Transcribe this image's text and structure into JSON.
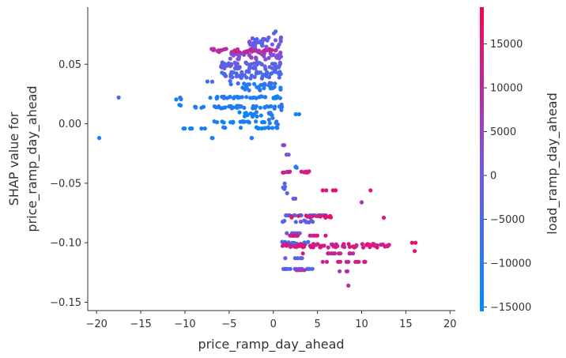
{
  "chart_data": {
    "type": "scatter",
    "xlabel": "price_ramp_day_ahead",
    "ylabel_lines": [
      "SHAP value for",
      "price_ramp_day_ahead"
    ],
    "xlim": [
      -21,
      20.6
    ],
    "ylim": [
      -0.157,
      0.098
    ],
    "xticks": [
      -20,
      -15,
      -10,
      -5,
      0,
      5,
      10,
      15,
      20
    ],
    "xtick_labels": [
      "−20",
      "−15",
      "−10",
      "−5",
      "0",
      "5",
      "10",
      "15",
      "20"
    ],
    "yticks": [
      0.05,
      0.0,
      -0.05,
      -0.1,
      -0.15
    ],
    "ytick_labels": [
      "0.05",
      "0.00",
      "−0.05",
      "−0.10",
      "−0.15"
    ],
    "grid": false,
    "colorbar": {
      "label": "load_ramp_day_ahead",
      "range": [
        -15500,
        19200
      ],
      "ticks": [
        15000,
        10000,
        5000,
        0,
        -5000,
        -10000,
        -15000
      ],
      "tick_labels": [
        "15000",
        "10000",
        "5000",
        "0",
        "−5000",
        "−10000",
        "−15000"
      ],
      "colormap": [
        "#008afb",
        "#7c52e0",
        "#ff0052"
      ]
    },
    "clusters": [
      {
        "x": [
          -19.7,
          -19.7
        ],
        "y": [
          -0.012,
          -0.012
        ],
        "color": -13000,
        "n": 1
      },
      {
        "x": [
          -17.5,
          -17.5
        ],
        "y": [
          0.022,
          0.022
        ],
        "color": -5000,
        "n": 1
      },
      {
        "x": [
          -11.5,
          -10.0
        ],
        "y": [
          0.014,
          0.022
        ],
        "color": -11000,
        "n": 5
      },
      {
        "x": [
          -10.5,
          -7.5
        ],
        "y": [
          -0.004,
          -0.004
        ],
        "color": -12000,
        "n": 6
      },
      {
        "x": [
          -9.0,
          1.0
        ],
        "y": [
          0.013,
          0.015
        ],
        "color": -11000,
        "n": 40
      },
      {
        "x": [
          -7.5,
          1.0
        ],
        "y": [
          0.021,
          0.023
        ],
        "color": -11000,
        "n": 35
      },
      {
        "x": [
          -7.0,
          0.5
        ],
        "y": [
          0.001,
          0.002
        ],
        "color": -12000,
        "n": 20
      },
      {
        "x": [
          -6.0,
          0.5
        ],
        "y": [
          -0.004,
          -0.003
        ],
        "color": -12000,
        "n": 15
      },
      {
        "x": [
          -7.0,
          -6.5
        ],
        "y": [
          -0.012,
          -0.012
        ],
        "color": -12000,
        "n": 2
      },
      {
        "x": [
          -2.5,
          -1.8
        ],
        "y": [
          -0.012,
          -0.012
        ],
        "color": -12000,
        "n": 2
      },
      {
        "x": [
          -4.0,
          0.0
        ],
        "y": [
          0.006,
          0.01
        ],
        "color": -12000,
        "n": 15
      },
      {
        "x": [
          -3.5,
          1.0
        ],
        "y": [
          0.028,
          0.034
        ],
        "color": -11000,
        "n": 25
      },
      {
        "x": [
          -7.5,
          0.5
        ],
        "y": [
          0.033,
          0.036
        ],
        "color": -5500,
        "n": 8
      },
      {
        "x": [
          -7.0,
          1.0
        ],
        "y": [
          0.038,
          0.044
        ],
        "color": -4500,
        "n": 45
      },
      {
        "x": [
          -6.0,
          1.0
        ],
        "y": [
          0.046,
          0.052
        ],
        "color": -2000,
        "n": 55
      },
      {
        "x": [
          -5.0,
          1.0
        ],
        "y": [
          0.054,
          0.06
        ],
        "color": 3000,
        "n": 40
      },
      {
        "x": [
          -7.0,
          1.0
        ],
        "y": [
          0.06,
          0.063
        ],
        "color": 10000,
        "n": 40
      },
      {
        "x": [
          -3.0,
          1.0
        ],
        "y": [
          0.064,
          0.073
        ],
        "color": 0,
        "n": 25
      },
      {
        "x": [
          0.0,
          0.5
        ],
        "y": [
          0.075,
          0.078
        ],
        "color": -3000,
        "n": 2
      },
      {
        "x": [
          -0.5,
          1.0
        ],
        "y": [
          -0.001,
          0.017
        ],
        "color": -8000,
        "n": 10
      },
      {
        "x": [
          2.0,
          3.0
        ],
        "y": [
          0.008,
          0.008
        ],
        "color": -12000,
        "n": 2
      },
      {
        "x": [
          -2.5,
          -0.5
        ],
        "y": [
          0.066,
          0.071
        ],
        "color": -4000,
        "n": 6
      },
      {
        "x": [
          0.8,
          1.5
        ],
        "y": [
          -0.018,
          -0.018
        ],
        "color": 6000,
        "n": 2
      },
      {
        "x": [
          0.9,
          1.8
        ],
        "y": [
          -0.026,
          -0.026
        ],
        "color": 0,
        "n": 2
      },
      {
        "x": [
          1.0,
          4.5
        ],
        "y": [
          -0.041,
          -0.04
        ],
        "color": 12000,
        "n": 14
      },
      {
        "x": [
          2.5,
          3.5
        ],
        "y": [
          -0.037,
          -0.036
        ],
        "color": -9000,
        "n": 3
      },
      {
        "x": [
          1.0,
          1.6
        ],
        "y": [
          -0.048,
          -0.06
        ],
        "color": -3000,
        "n": 5
      },
      {
        "x": [
          2.2,
          2.8
        ],
        "y": [
          -0.063,
          -0.063
        ],
        "color": 2000,
        "n": 2
      },
      {
        "x": [
          5.5,
          7.5
        ],
        "y": [
          -0.056,
          -0.056
        ],
        "color": 14000,
        "n": 5
      },
      {
        "x": [
          11.0,
          11.0
        ],
        "y": [
          -0.056,
          -0.056
        ],
        "color": 12000,
        "n": 1
      },
      {
        "x": [
          10.0,
          10.0
        ],
        "y": [
          -0.066,
          -0.066
        ],
        "color": 6000,
        "n": 1
      },
      {
        "x": [
          1.0,
          6.0
        ],
        "y": [
          -0.077,
          -0.077
        ],
        "color": -4000,
        "n": 20
      },
      {
        "x": [
          2.0,
          7.0
        ],
        "y": [
          -0.079,
          -0.077
        ],
        "color": 14000,
        "n": 20
      },
      {
        "x": [
          1.0,
          4.5
        ],
        "y": [
          -0.083,
          -0.081
        ],
        "color": -2000,
        "n": 10
      },
      {
        "x": [
          12.5,
          12.5
        ],
        "y": [
          -0.079,
          -0.079
        ],
        "color": 12000,
        "n": 1
      },
      {
        "x": [
          1.0,
          3.0
        ],
        "y": [
          -0.092,
          -0.092
        ],
        "color": -1000,
        "n": 6
      },
      {
        "x": [
          1.0,
          6.0
        ],
        "y": [
          -0.094,
          -0.094
        ],
        "color": 13000,
        "n": 14
      },
      {
        "x": [
          1.0,
          4.0
        ],
        "y": [
          -0.102,
          -0.099
        ],
        "color": -5000,
        "n": 20
      },
      {
        "x": [
          1.0,
          13.5
        ],
        "y": [
          -0.104,
          -0.101
        ],
        "color": 13000,
        "n": 75
      },
      {
        "x": [
          15.5,
          16.5
        ],
        "y": [
          -0.1,
          -0.1
        ],
        "color": 14000,
        "n": 2
      },
      {
        "x": [
          16.0,
          16.0
        ],
        "y": [
          -0.107,
          -0.107
        ],
        "color": 14000,
        "n": 1
      },
      {
        "x": [
          3.0,
          10.0
        ],
        "y": [
          -0.109,
          -0.109
        ],
        "color": 11000,
        "n": 12
      },
      {
        "x": [
          1.0,
          3.5
        ],
        "y": [
          -0.113,
          -0.113
        ],
        "color": -3000,
        "n": 5
      },
      {
        "x": [
          5.5,
          11.0
        ],
        "y": [
          -0.116,
          -0.116
        ],
        "color": 13000,
        "n": 14
      },
      {
        "x": [
          1.0,
          4.5
        ],
        "y": [
          -0.122,
          -0.122
        ],
        "color": -4000,
        "n": 16
      },
      {
        "x": [
          2.5,
          4.0
        ],
        "y": [
          -0.123,
          -0.123
        ],
        "color": 8000,
        "n": 5
      },
      {
        "x": [
          7.5,
          8.5
        ],
        "y": [
          -0.124,
          -0.124
        ],
        "color": 7000,
        "n": 3
      },
      {
        "x": [
          8.5,
          8.5
        ],
        "y": [
          -0.136,
          -0.136
        ],
        "color": 8000,
        "n": 1
      }
    ]
  }
}
